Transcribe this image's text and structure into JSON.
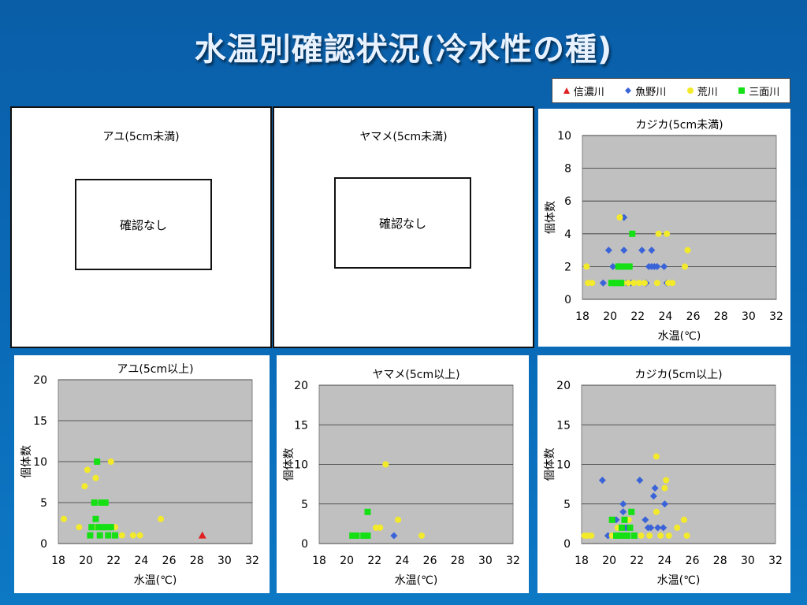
{
  "title": "水温別確認状況(冷水性の種)",
  "legend": [
    {
      "name": "信濃川",
      "color": "#e02020",
      "marker": "triangle"
    },
    {
      "name": "魚野川",
      "color": "#3a63d8",
      "marker": "diamond"
    },
    {
      "name": "荒川",
      "color": "#f2ea2a",
      "marker": "circle"
    },
    {
      "name": "三面川",
      "color": "#14e014",
      "marker": "square"
    }
  ],
  "empty_panels": [
    {
      "title": "アユ(5cm未満)",
      "message": "確認なし"
    },
    {
      "title": "ヤマメ(5cm未満)",
      "message": "確認なし"
    }
  ],
  "chart_data": [
    {
      "type": "scatter",
      "title": "カジカ(5cm未満)",
      "xlabel": "水温(℃)",
      "ylabel": "個体数",
      "xlim": [
        18,
        32
      ],
      "ylim": [
        0,
        10
      ],
      "xticks": [
        18,
        20,
        22,
        24,
        26,
        28,
        30,
        32
      ],
      "yticks": [
        0,
        2,
        4,
        6,
        8,
        10
      ],
      "grid": "horizontal",
      "series": [
        {
          "name": "魚野川",
          "points": [
            [
              19.5,
              1
            ],
            [
              19.9,
              3
            ],
            [
              20.2,
              2
            ],
            [
              20.6,
              2
            ],
            [
              20.9,
              1
            ],
            [
              21.0,
              5
            ],
            [
              21.0,
              3
            ],
            [
              21.2,
              1
            ],
            [
              21.5,
              1
            ],
            [
              22.3,
              3
            ],
            [
              22.5,
              1
            ],
            [
              22.8,
              2
            ],
            [
              23.0,
              3
            ],
            [
              23.0,
              2
            ],
            [
              23.2,
              2
            ],
            [
              23.4,
              2
            ],
            [
              23.9,
              2
            ],
            [
              24.1,
              1
            ],
            [
              20.7,
              1
            ],
            [
              22.6,
              1
            ]
          ]
        },
        {
          "name": "荒川",
          "points": [
            [
              18.3,
              2
            ],
            [
              18.4,
              1
            ],
            [
              18.7,
              1
            ],
            [
              20.7,
              5
            ],
            [
              20.9,
              1
            ],
            [
              21.3,
              1
            ],
            [
              21.7,
              1
            ],
            [
              22.1,
              1
            ],
            [
              22.5,
              1
            ],
            [
              23.4,
              1
            ],
            [
              23.5,
              4
            ],
            [
              24.1,
              4
            ],
            [
              24.2,
              1
            ],
            [
              25.4,
              2
            ],
            [
              25.6,
              3
            ],
            [
              24.5,
              1
            ]
          ]
        },
        {
          "name": "三面川",
          "points": [
            [
              20.1,
              1
            ],
            [
              20.3,
              1
            ],
            [
              20.5,
              1
            ],
            [
              20.6,
              2
            ],
            [
              20.8,
              1
            ],
            [
              21.0,
              2
            ],
            [
              21.4,
              2
            ],
            [
              21.6,
              4
            ]
          ]
        }
      ]
    },
    {
      "type": "scatter",
      "title": "アユ(5cm以上)",
      "xlabel": "水温(℃)",
      "ylabel": "個体数",
      "xlim": [
        18,
        32
      ],
      "ylim": [
        0,
        20
      ],
      "xticks": [
        18,
        20,
        22,
        24,
        26,
        28,
        30,
        32
      ],
      "yticks": [
        0,
        5,
        10,
        15,
        20
      ],
      "grid": "horizontal",
      "series": [
        {
          "name": "信濃川",
          "points": [
            [
              28.4,
              1
            ]
          ]
        },
        {
          "name": "荒川",
          "points": [
            [
              18.4,
              3
            ],
            [
              19.5,
              2
            ],
            [
              19.9,
              7
            ],
            [
              20.1,
              9
            ],
            [
              20.7,
              8
            ],
            [
              20.8,
              2
            ],
            [
              21.8,
              10
            ],
            [
              22.1,
              2
            ],
            [
              22.6,
              1
            ],
            [
              23.4,
              1
            ],
            [
              23.9,
              1
            ],
            [
              25.4,
              3
            ]
          ]
        },
        {
          "name": "三面川",
          "points": [
            [
              20.3,
              1
            ],
            [
              20.4,
              2
            ],
            [
              20.6,
              5
            ],
            [
              20.7,
              3
            ],
            [
              20.8,
              10
            ],
            [
              20.9,
              2
            ],
            [
              21.0,
              1
            ],
            [
              21.1,
              5
            ],
            [
              21.2,
              2
            ],
            [
              21.4,
              5
            ],
            [
              21.5,
              2
            ],
            [
              21.6,
              1
            ],
            [
              21.8,
              2
            ],
            [
              22.1,
              1
            ]
          ]
        }
      ]
    },
    {
      "type": "scatter",
      "title": "ヤマメ(5cm以上)",
      "xlabel": "水温(℃)",
      "ylabel": "個体数",
      "xlim": [
        18,
        32
      ],
      "ylim": [
        0,
        20
      ],
      "xticks": [
        18,
        20,
        22,
        24,
        26,
        28,
        30,
        32
      ],
      "yticks": [
        0,
        5,
        10,
        15,
        20
      ],
      "grid": "horizontal",
      "series": [
        {
          "name": "魚野川",
          "points": [
            [
              23.4,
              1
            ]
          ]
        },
        {
          "name": "荒川",
          "points": [
            [
              22.1,
              2
            ],
            [
              22.4,
              2
            ],
            [
              22.8,
              10
            ],
            [
              23.7,
              3
            ],
            [
              25.4,
              1
            ]
          ]
        },
        {
          "name": "三面川",
          "points": [
            [
              20.4,
              1
            ],
            [
              20.7,
              1
            ],
            [
              21.2,
              1
            ],
            [
              21.5,
              1
            ],
            [
              21.5,
              4
            ]
          ]
        }
      ]
    },
    {
      "type": "scatter",
      "title": "カジカ(5cm以上)",
      "xlabel": "水温(℃)",
      "ylabel": "個体数",
      "xlim": [
        18,
        32
      ],
      "ylim": [
        0,
        20
      ],
      "xticks": [
        18,
        20,
        22,
        24,
        26,
        28,
        30,
        32
      ],
      "yticks": [
        0,
        5,
        10,
        15,
        20
      ],
      "grid": "horizontal",
      "series": [
        {
          "name": "魚野川",
          "points": [
            [
              19.5,
              8
            ],
            [
              19.9,
              1
            ],
            [
              20.5,
              3
            ],
            [
              21.0,
              5
            ],
            [
              21.0,
              4
            ],
            [
              21.2,
              2
            ],
            [
              22.2,
              8
            ],
            [
              22.6,
              3
            ],
            [
              22.8,
              2
            ],
            [
              23.0,
              2
            ],
            [
              23.2,
              6
            ],
            [
              23.3,
              7
            ],
            [
              23.5,
              2
            ],
            [
              23.9,
              2
            ],
            [
              24.0,
              5
            ]
          ]
        },
        {
          "name": "荒川",
          "points": [
            [
              18.2,
              1
            ],
            [
              18.4,
              1
            ],
            [
              18.7,
              1
            ],
            [
              20.2,
              1
            ],
            [
              20.6,
              2
            ],
            [
              21.4,
              3
            ],
            [
              22.3,
              1
            ],
            [
              22.9,
              1
            ],
            [
              23.4,
              11
            ],
            [
              23.4,
              4
            ],
            [
              24.0,
              7
            ],
            [
              24.1,
              8
            ],
            [
              24.3,
              1
            ],
            [
              24.9,
              2
            ],
            [
              25.4,
              3
            ],
            [
              25.6,
              1
            ],
            [
              23.7,
              1
            ]
          ]
        },
        {
          "name": "三面川",
          "points": [
            [
              20.2,
              3
            ],
            [
              20.5,
              1
            ],
            [
              20.7,
              1
            ],
            [
              20.9,
              2
            ],
            [
              21.0,
              1
            ],
            [
              21.1,
              3
            ],
            [
              21.3,
              1
            ],
            [
              21.5,
              2
            ],
            [
              21.6,
              4
            ],
            [
              21.8,
              1
            ],
            [
              21.3,
              1
            ]
          ]
        }
      ]
    }
  ]
}
